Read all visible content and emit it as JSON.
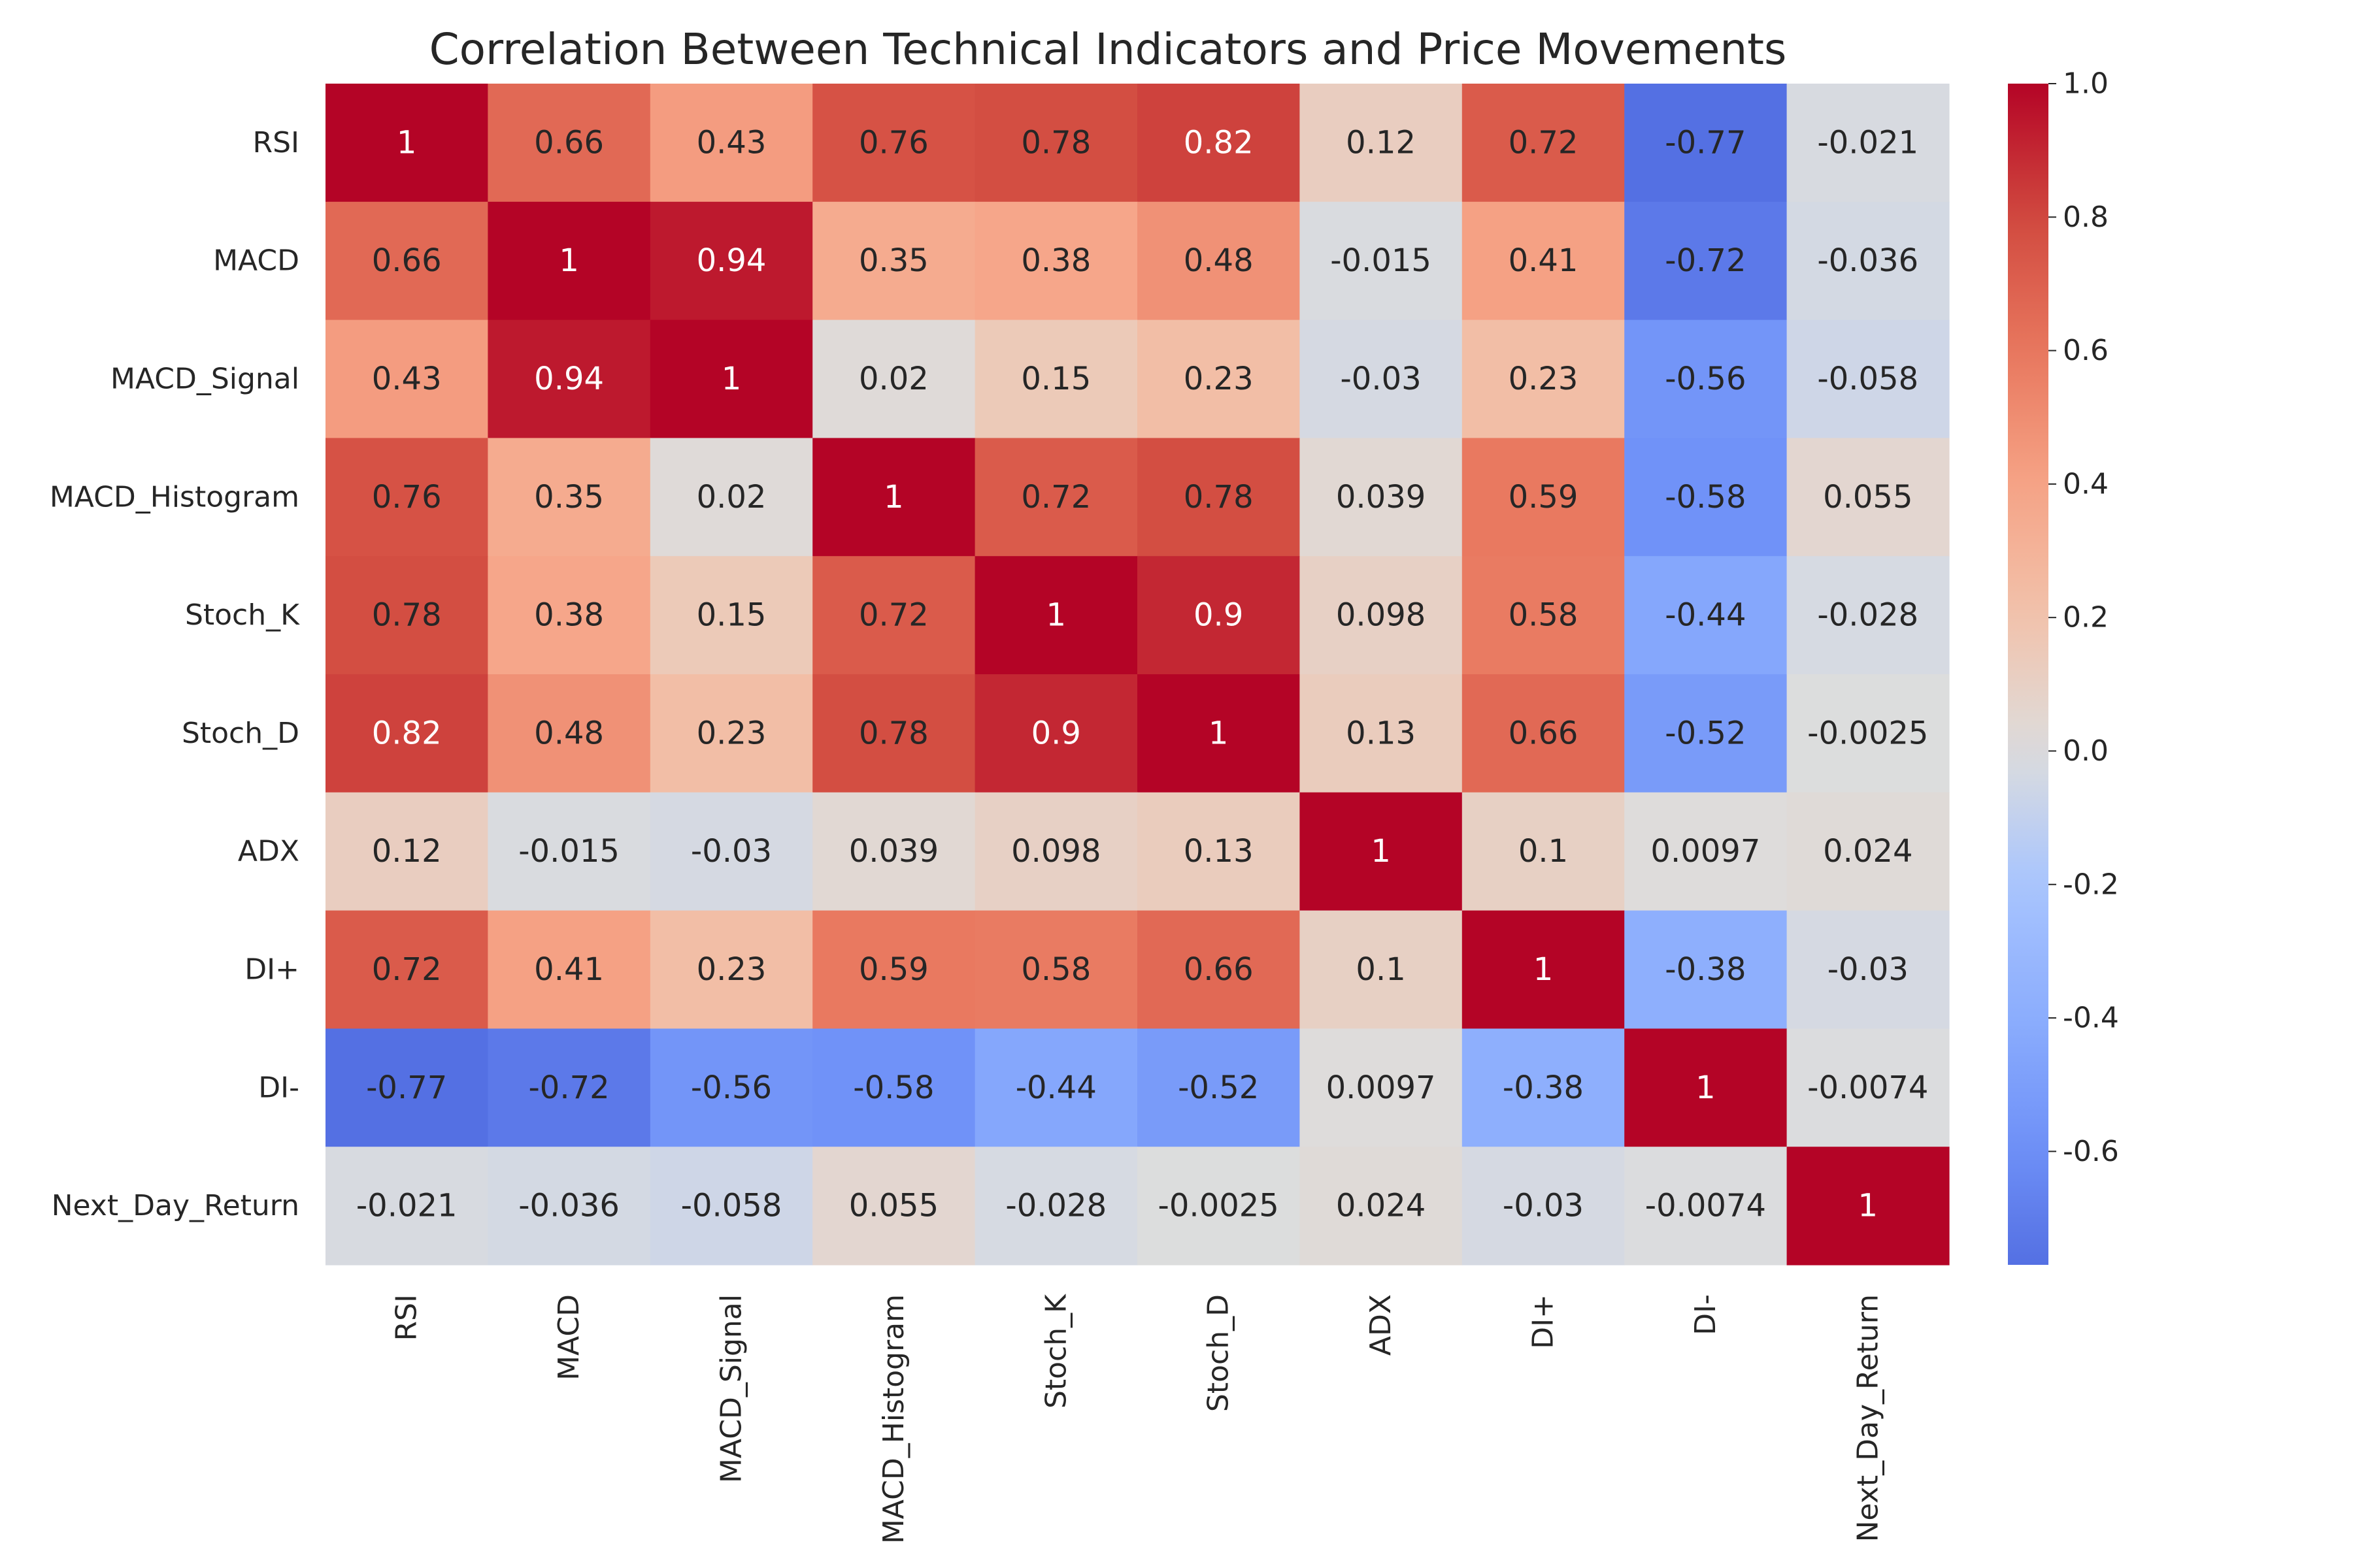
{
  "chart_data": {
    "type": "heatmap",
    "title": "Correlation Between Technical Indicators and Price Movements",
    "xlabel": "",
    "ylabel": "",
    "row_labels": [
      "RSI",
      "MACD",
      "MACD_Signal",
      "MACD_Histogram",
      "Stoch_K",
      "Stoch_D",
      "ADX",
      "DI+",
      "DI-",
      "Next_Day_Return"
    ],
    "col_labels": [
      "RSI",
      "MACD",
      "MACD_Signal",
      "MACD_Histogram",
      "Stoch_K",
      "Stoch_D",
      "ADX",
      "DI+",
      "DI-",
      "Next_Day_Return"
    ],
    "values": [
      [
        1,
        0.66,
        0.43,
        0.76,
        0.78,
        0.82,
        0.12,
        0.72,
        -0.77,
        -0.021
      ],
      [
        0.66,
        1,
        0.94,
        0.35,
        0.38,
        0.48,
        -0.015,
        0.41,
        -0.72,
        -0.036
      ],
      [
        0.43,
        0.94,
        1,
        0.02,
        0.15,
        0.23,
        -0.03,
        0.23,
        -0.56,
        -0.058
      ],
      [
        0.76,
        0.35,
        0.02,
        1,
        0.72,
        0.78,
        0.039,
        0.59,
        -0.58,
        0.055
      ],
      [
        0.78,
        0.38,
        0.15,
        0.72,
        1,
        0.9,
        0.098,
        0.58,
        -0.44,
        -0.028
      ],
      [
        0.82,
        0.48,
        0.23,
        0.78,
        0.9,
        1,
        0.13,
        0.66,
        -0.52,
        -0.0025
      ],
      [
        0.12,
        -0.015,
        -0.03,
        0.039,
        0.098,
        0.13,
        1,
        0.1,
        0.0097,
        0.024
      ],
      [
        0.72,
        0.41,
        0.23,
        0.59,
        0.58,
        0.66,
        0.1,
        1,
        -0.38,
        -0.03
      ],
      [
        -0.77,
        -0.72,
        -0.56,
        -0.58,
        -0.44,
        -0.52,
        0.0097,
        -0.38,
        1,
        -0.0074
      ],
      [
        -0.021,
        -0.036,
        -0.058,
        0.055,
        -0.028,
        -0.0025,
        0.024,
        -0.03,
        -0.0074,
        1
      ]
    ],
    "cell_labels": [
      [
        "1",
        "0.66",
        "0.43",
        "0.76",
        "0.78",
        "0.82",
        "0.12",
        "0.72",
        "-0.77",
        "-0.021"
      ],
      [
        "0.66",
        "1",
        "0.94",
        "0.35",
        "0.38",
        "0.48",
        "-0.015",
        "0.41",
        "-0.72",
        "-0.036"
      ],
      [
        "0.43",
        "0.94",
        "1",
        "0.02",
        "0.15",
        "0.23",
        "-0.03",
        "0.23",
        "-0.56",
        "-0.058"
      ],
      [
        "0.76",
        "0.35",
        "0.02",
        "1",
        "0.72",
        "0.78",
        "0.039",
        "0.59",
        "-0.58",
        "0.055"
      ],
      [
        "0.78",
        "0.38",
        "0.15",
        "0.72",
        "1",
        "0.9",
        "0.098",
        "0.58",
        "-0.44",
        "-0.028"
      ],
      [
        "0.82",
        "0.48",
        "0.23",
        "0.78",
        "0.9",
        "1",
        "0.13",
        "0.66",
        "-0.52",
        "-0.0025"
      ],
      [
        "0.12",
        "-0.015",
        "-0.03",
        "0.039",
        "0.098",
        "0.13",
        "1",
        "0.1",
        "0.0097",
        "0.024"
      ],
      [
        "0.72",
        "0.41",
        "0.23",
        "0.59",
        "0.58",
        "0.66",
        "0.1",
        "1",
        "-0.38",
        "-0.03"
      ],
      [
        "-0.77",
        "-0.72",
        "-0.56",
        "-0.58",
        "-0.44",
        "-0.52",
        "0.0097",
        "-0.38",
        "1",
        "-0.0074"
      ],
      [
        "-0.021",
        "-0.036",
        "-0.058",
        "0.055",
        "-0.028",
        "-0.0025",
        "0.024",
        "-0.03",
        "-0.0074",
        "1"
      ]
    ],
    "colormap": "coolwarm",
    "vmin": -0.77,
    "vmax": 1.0,
    "center": 0,
    "colorbar": {
      "position": "right",
      "ticks": [
        1.0,
        0.8,
        0.6,
        0.4,
        0.2,
        0.0,
        -0.2,
        -0.4,
        -0.6
      ],
      "tick_labels": [
        "1.0",
        "0.8",
        "0.6",
        "0.4",
        "0.2",
        "0.0",
        "-0.2",
        "-0.4",
        "-0.6"
      ]
    },
    "grid": false,
    "annotations": true,
    "colors": {
      "cmap_low": "#3b4cc0",
      "cmap_mid": "#dddddd",
      "cmap_high": "#b40426",
      "text_dark": "#262626",
      "text_light": "#ffffff"
    }
  }
}
